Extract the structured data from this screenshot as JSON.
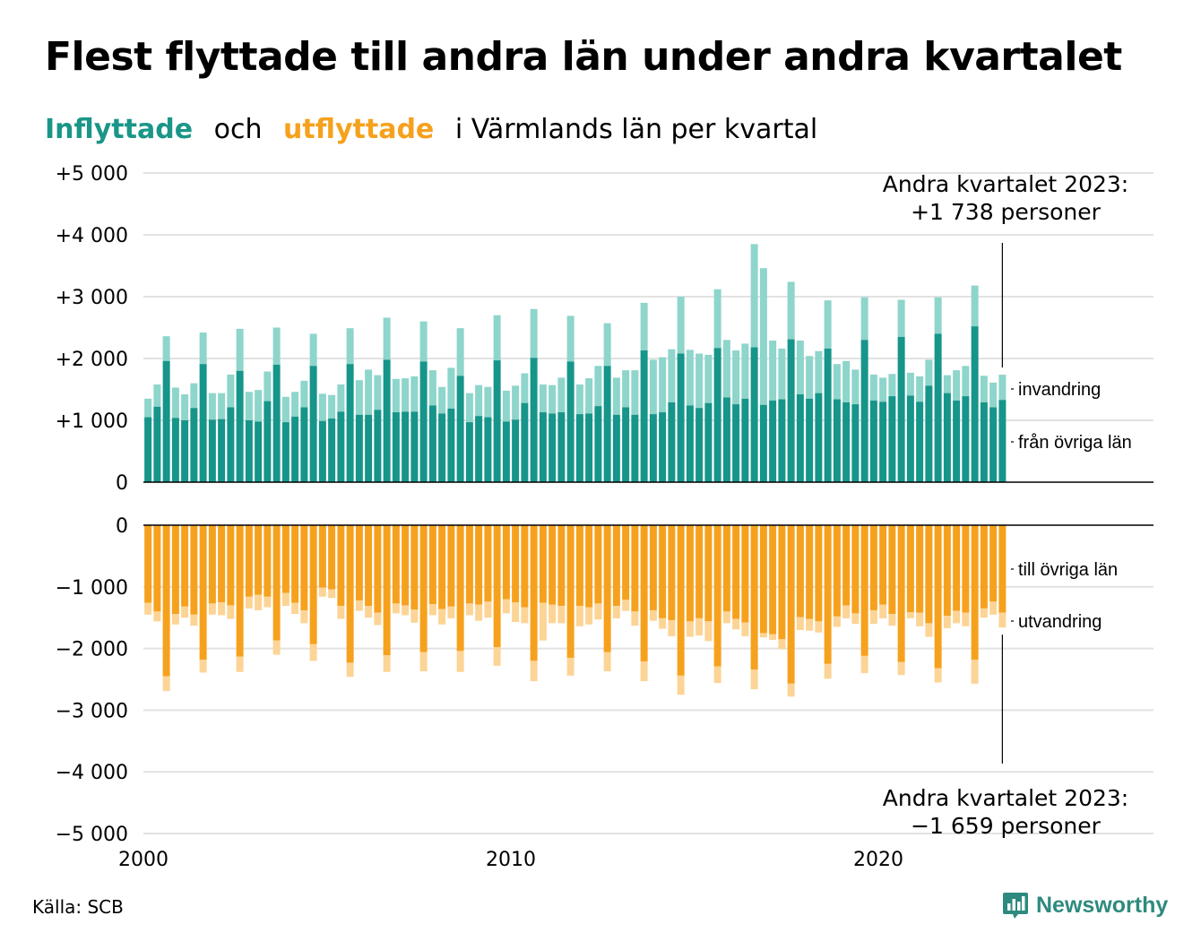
{
  "title": "Flest flyttade till andra län under andra kvartalet",
  "subtitle": {
    "part1": "Inflyttade",
    "part2": "och",
    "part3": "utflyttade",
    "part4": "i Värmlands län per kvartal"
  },
  "source": "Källa: SCB",
  "brand": "Newsworthy",
  "colors": {
    "in_dark": "#16958a",
    "in_light": "#8ed5cb",
    "out_dark": "#f6a11d",
    "out_light": "#fcd496",
    "grid": "#e2e2e2",
    "axis": "#000000",
    "brand": "#2e8a7e"
  },
  "chart_data": {
    "type": "bar",
    "stacked": true,
    "quarter_start": "2000-Q1",
    "x_ticks": [
      "2000",
      "2010",
      "2020"
    ],
    "panels": [
      {
        "name": "inflyttade",
        "y_ticks": [
          "+5 000",
          "+4 000",
          "+3 000",
          "+2 000",
          "+1 000",
          "0"
        ],
        "ylim": [
          0,
          5000
        ],
        "series_labels": [
          "invandring",
          "från övriga län"
        ],
        "annotation": [
          "Andra kvartalet 2023:",
          "+1 738 personer"
        ],
        "total": [
          1350,
          1580,
          2360,
          1530,
          1420,
          1600,
          2420,
          1440,
          1440,
          1740,
          2480,
          1460,
          1490,
          1790,
          2500,
          1380,
          1460,
          1640,
          2400,
          1430,
          1410,
          1580,
          2490,
          1650,
          1820,
          1730,
          2660,
          1670,
          1680,
          1710,
          2600,
          1810,
          1540,
          1850,
          2490,
          1440,
          1570,
          1540,
          2700,
          1480,
          1560,
          1760,
          2800,
          1580,
          1570,
          1690,
          2690,
          1580,
          1680,
          1880,
          2570,
          1690,
          1810,
          1810,
          2900,
          1980,
          2020,
          2150,
          3000,
          2140,
          2080,
          2060,
          3120,
          2300,
          2130,
          2240,
          3850,
          3460,
          2290,
          2160,
          3240,
          2290,
          2040,
          2120,
          2940,
          1910,
          1960,
          1820,
          2990,
          1740,
          1690,
          1750,
          2950,
          1770,
          1710,
          1980,
          2990,
          1730,
          1810,
          1880,
          3180,
          1720,
          1610,
          1738
        ],
        "base": [
          1050,
          1220,
          1960,
          1040,
          1000,
          1200,
          1910,
          1010,
          1020,
          1210,
          1800,
          1000,
          980,
          1310,
          1900,
          970,
          1060,
          1210,
          1880,
          990,
          1030,
          1140,
          1910,
          1090,
          1090,
          1170,
          1980,
          1130,
          1140,
          1140,
          1950,
          1240,
          1110,
          1190,
          1720,
          970,
          1070,
          1050,
          1970,
          980,
          1010,
          1280,
          2010,
          1130,
          1110,
          1130,
          1950,
          1100,
          1110,
          1230,
          1880,
          1090,
          1210,
          1090,
          2130,
          1100,
          1130,
          1290,
          2080,
          1240,
          1200,
          1280,
          2170,
          1370,
          1260,
          1350,
          2180,
          1250,
          1320,
          1340,
          2310,
          1420,
          1350,
          1440,
          2160,
          1340,
          1290,
          1260,
          2300,
          1320,
          1300,
          1390,
          2350,
          1400,
          1300,
          1560,
          2400,
          1440,
          1320,
          1390,
          2520,
          1290,
          1210,
          1330
        ]
      },
      {
        "name": "utflyttade",
        "y_ticks": [
          "0",
          "−1 000",
          "−2 000",
          "−3 000",
          "−4 000",
          "−5 000"
        ],
        "ylim": [
          -5000,
          0
        ],
        "series_labels": [
          "till övriga län",
          "utvandring"
        ],
        "annotation": [
          "Andra kvartalet 2023:",
          "−1 659 personer"
        ],
        "total": [
          -1450,
          -1560,
          -2690,
          -1610,
          -1500,
          -1630,
          -2390,
          -1450,
          -1460,
          -1520,
          -2380,
          -1350,
          -1380,
          -1330,
          -2100,
          -1310,
          -1440,
          -1590,
          -2200,
          -1160,
          -1180,
          -1520,
          -2460,
          -1390,
          -1500,
          -1620,
          -2380,
          -1430,
          -1460,
          -1580,
          -2370,
          -1460,
          -1610,
          -1510,
          -2380,
          -1460,
          -1550,
          -1500,
          -2280,
          -1430,
          -1570,
          -1590,
          -2530,
          -1870,
          -1590,
          -1590,
          -2440,
          -1640,
          -1610,
          -1530,
          -2370,
          -1510,
          -1390,
          -1630,
          -2530,
          -1550,
          -1680,
          -1800,
          -2750,
          -1810,
          -1790,
          -1880,
          -2560,
          -1590,
          -1690,
          -1800,
          -2660,
          -1820,
          -1860,
          -2010,
          -2780,
          -1700,
          -1710,
          -1740,
          -2490,
          -1650,
          -1510,
          -1600,
          -2400,
          -1600,
          -1510,
          -1630,
          -2430,
          -1510,
          -1640,
          -1810,
          -2550,
          -1670,
          -1590,
          -1640,
          -2570,
          -1500,
          -1450,
          -1659
        ],
        "base": [
          -1260,
          -1400,
          -2450,
          -1440,
          -1320,
          -1450,
          -2180,
          -1270,
          -1250,
          -1300,
          -2130,
          -1160,
          -1130,
          -1160,
          -1870,
          -1100,
          -1260,
          -1380,
          -1930,
          -1010,
          -1040,
          -1310,
          -2230,
          -1220,
          -1310,
          -1420,
          -2110,
          -1270,
          -1300,
          -1370,
          -2060,
          -1280,
          -1360,
          -1320,
          -2040,
          -1270,
          -1290,
          -1240,
          -1980,
          -1200,
          -1250,
          -1330,
          -2200,
          -1260,
          -1290,
          -1310,
          -2150,
          -1310,
          -1330,
          -1270,
          -2060,
          -1310,
          -1210,
          -1400,
          -2210,
          -1380,
          -1510,
          -1540,
          -2440,
          -1560,
          -1510,
          -1560,
          -2290,
          -1400,
          -1520,
          -1580,
          -2340,
          -1750,
          -1770,
          -1850,
          -2570,
          -1490,
          -1520,
          -1560,
          -2250,
          -1480,
          -1300,
          -1430,
          -2120,
          -1380,
          -1290,
          -1440,
          -2220,
          -1410,
          -1420,
          -1590,
          -2320,
          -1470,
          -1390,
          -1420,
          -2180,
          -1350,
          -1240,
          -1420
        ]
      }
    ]
  }
}
